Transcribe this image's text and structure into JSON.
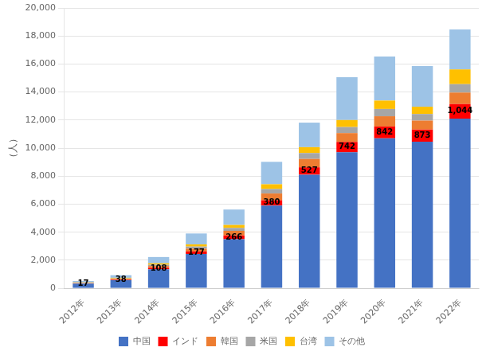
{
  "chart_data": {
    "type": "bar",
    "stacked": true,
    "ylabel": "（人）",
    "categories": [
      "2012年",
      "2013年",
      "2014年",
      "2015年",
      "2016年",
      "2017年",
      "2018年",
      "2019年",
      "2020年",
      "2021年",
      "2022年"
    ],
    "series": [
      {
        "name": "中国",
        "color": "#4472C4",
        "values": [
          330,
          580,
          1350,
          2450,
          3500,
          5900,
          8100,
          9700,
          10700,
          10450,
          12100
        ]
      },
      {
        "name": "インド",
        "color": "#FF0000",
        "values": [
          17,
          38,
          108,
          177,
          266,
          380,
          527,
          742,
          842,
          873,
          1044
        ],
        "data_labels": true,
        "value_labels": [
          "17",
          "38",
          "108",
          "177",
          "266",
          "380",
          "527",
          "742",
          "842",
          "873",
          "1,044"
        ]
      },
      {
        "name": "韓国",
        "color": "#ED7D31",
        "values": [
          25,
          50,
          130,
          200,
          330,
          480,
          600,
          630,
          730,
          640,
          820
        ]
      },
      {
        "name": "米国",
        "color": "#A6A6A6",
        "values": [
          18,
          35,
          90,
          150,
          210,
          320,
          420,
          430,
          520,
          470,
          600
        ]
      },
      {
        "name": "台湾",
        "color": "#FFC000",
        "values": [
          25,
          45,
          100,
          150,
          210,
          340,
          420,
          500,
          600,
          520,
          1050
        ]
      },
      {
        "name": "その他",
        "color": "#9DC3E6",
        "values": [
          100,
          180,
          450,
          780,
          1100,
          1600,
          1750,
          3050,
          3150,
          2900,
          2850
        ]
      }
    ],
    "ylim": [
      0,
      20000
    ],
    "yticks": [
      0,
      {
        "value": 2000,
        "label": "2,000"
      },
      {
        "value": 4000,
        "label": "4,000"
      },
      {
        "value": 6000,
        "label": "6,000"
      },
      {
        "value": 8000,
        "label": "8,000"
      },
      {
        "value": 10000,
        "label": "10,000"
      },
      {
        "value": 12000,
        "label": "12,000"
      },
      {
        "value": 14000,
        "label": "14,000"
      },
      {
        "value": 16000,
        "label": "16,000"
      },
      {
        "value": 18000,
        "label": "18,000"
      },
      {
        "value": 20000,
        "label": "20,000"
      }
    ],
    "grid": true,
    "legend": "bottom"
  }
}
